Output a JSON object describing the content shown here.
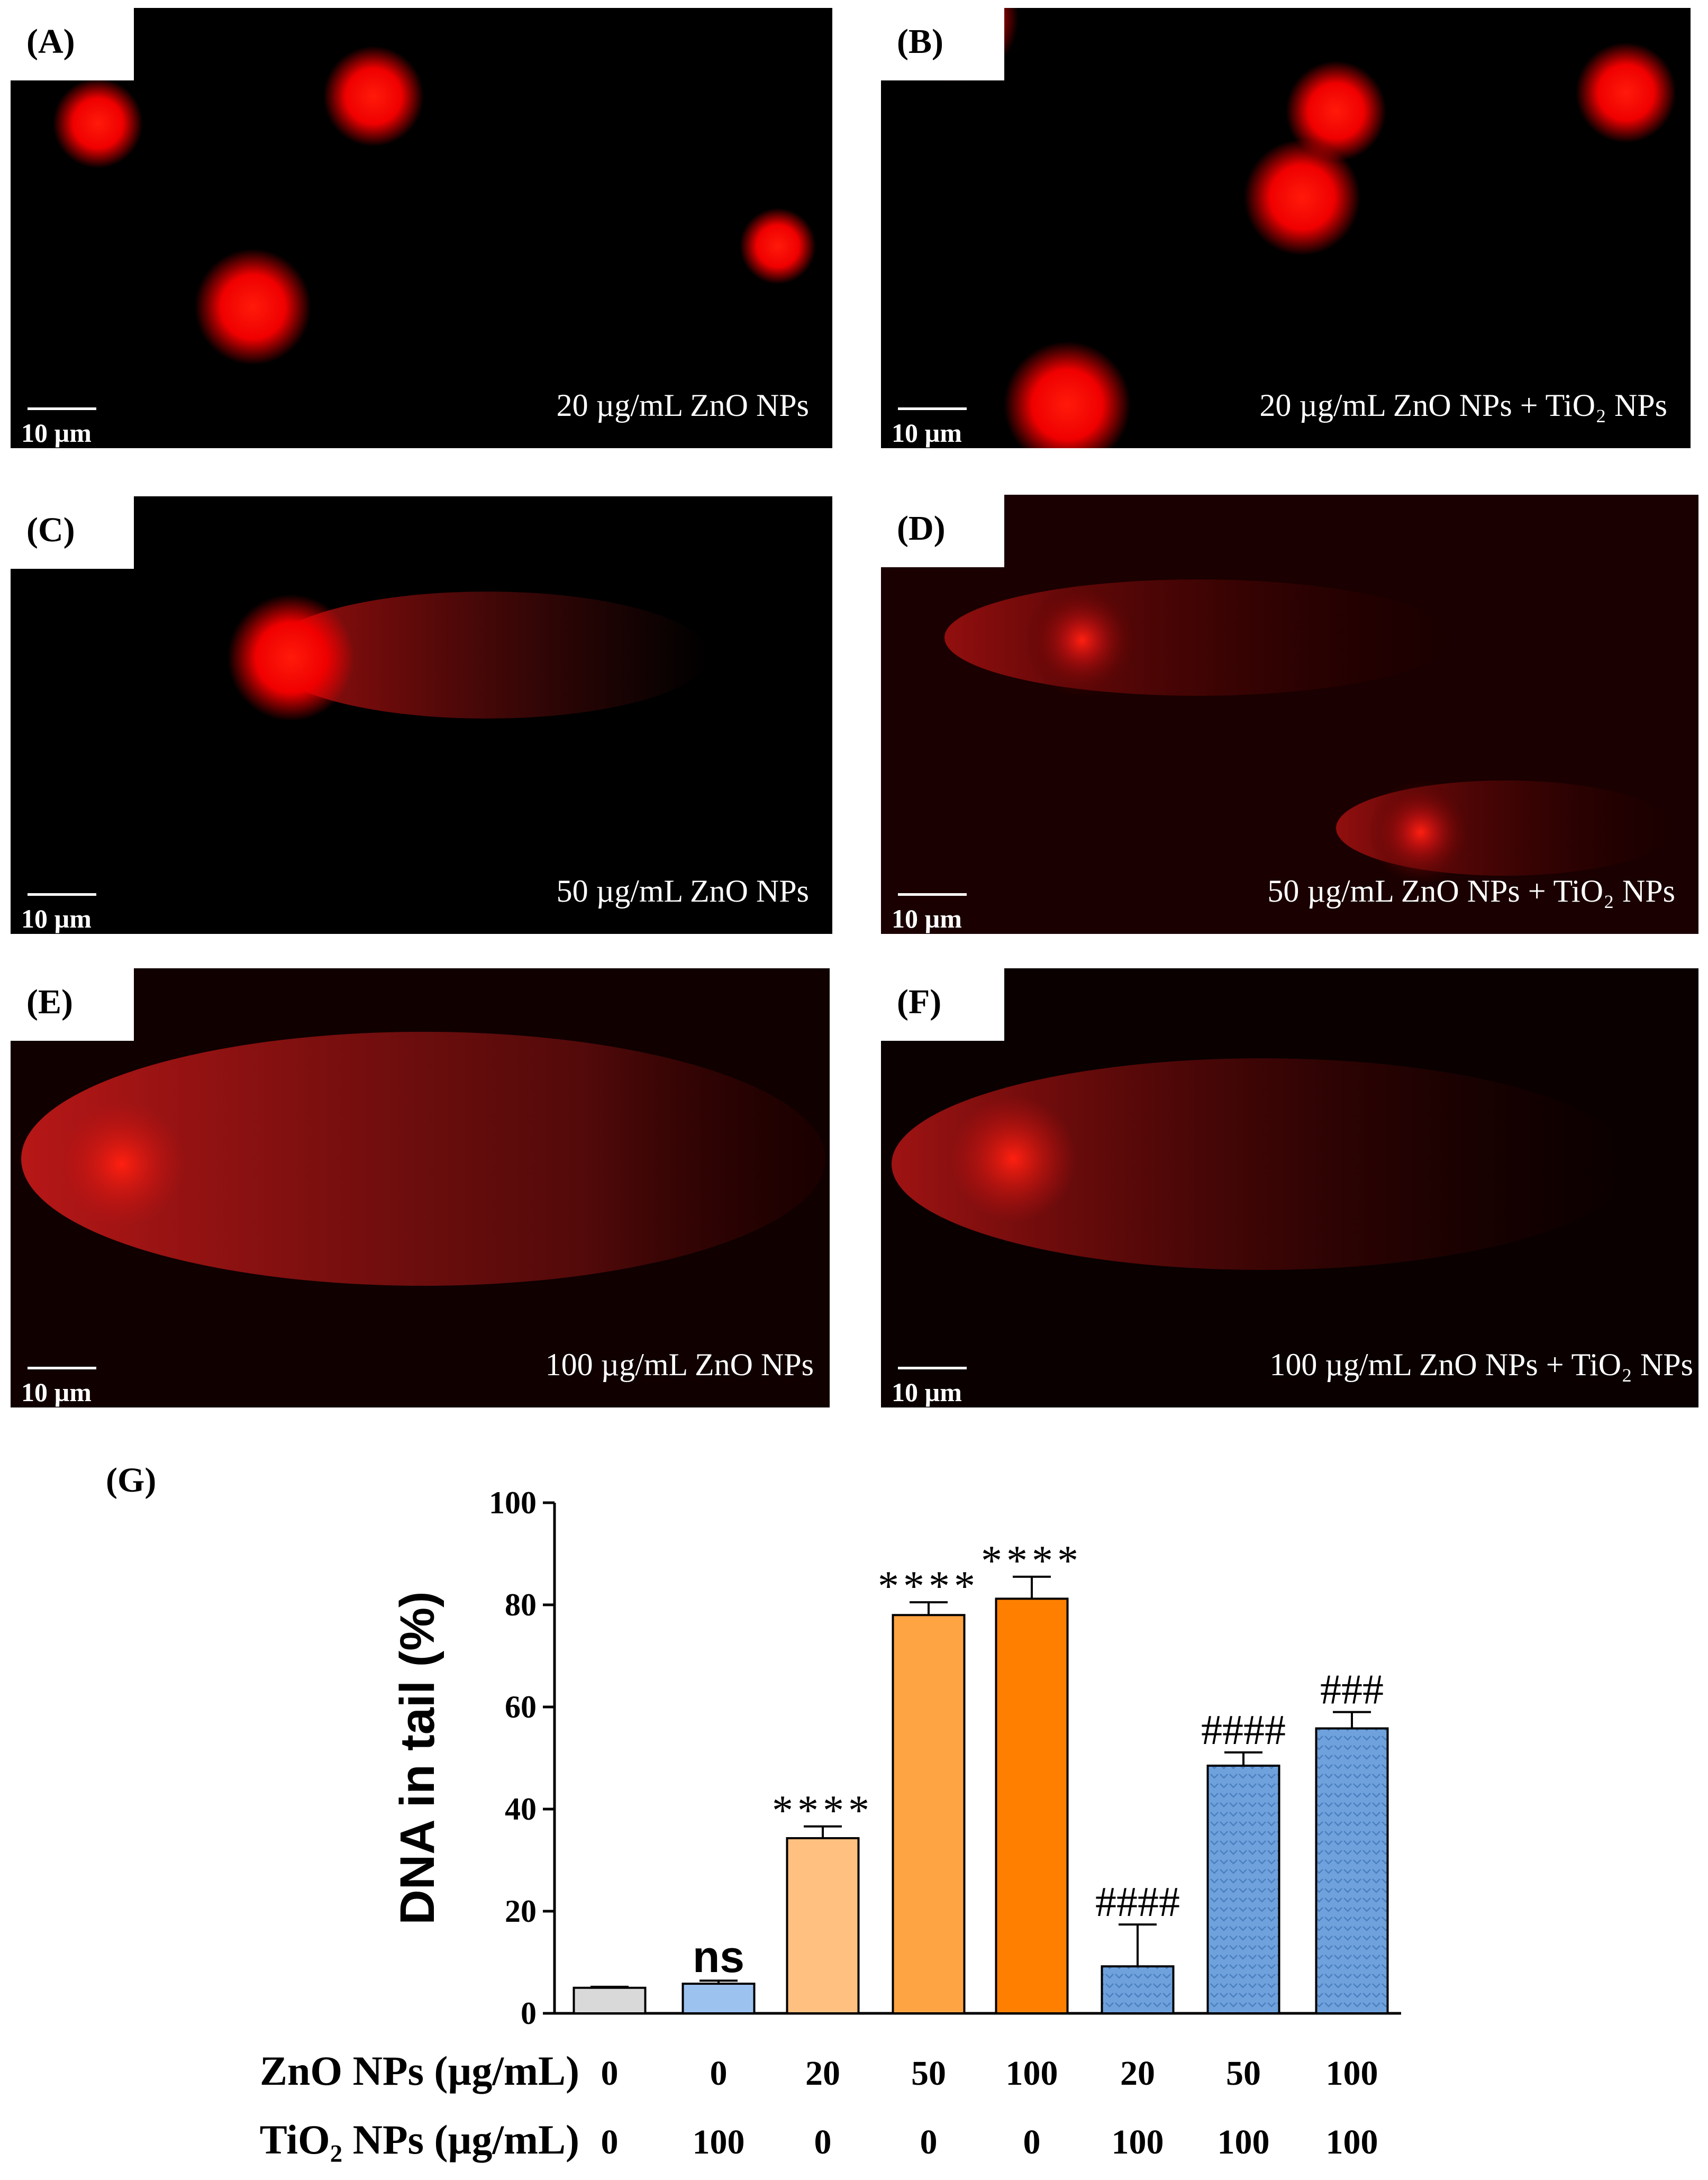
{
  "panels": [
    {
      "label": "(A)",
      "caption": "20 µg/mL ZnO NPs",
      "scale": "10 µm"
    },
    {
      "label": "(B)",
      "caption": "20 µg/mL ZnO NPs + TiO₂ NPs",
      "scale": "10 µm"
    },
    {
      "label": "(C)",
      "caption": "50 µg/mL ZnO NPs",
      "scale": "10 µm"
    },
    {
      "label": "(D)",
      "caption": "50 µg/mL ZnO NPs + TiO₂ NPs",
      "scale": "10 µm"
    },
    {
      "label": "(E)",
      "caption": "100 µg/mL ZnO NPs",
      "scale": "10 µm"
    },
    {
      "label": "(F)",
      "caption": "100 µg/mL ZnO NPs + TiO₂ NPs",
      "scale": "10 µm"
    }
  ],
  "chart_label": "(G)",
  "chart_data": {
    "type": "bar",
    "ylabel": "DNA in tail (%)",
    "ylim": [
      0,
      100
    ],
    "yticks": [
      0,
      20,
      40,
      60,
      80,
      100
    ],
    "row_labels": [
      "ZnO NPs (µg/mL)",
      "TiO₂ NPs (µg/mL)"
    ],
    "zno": [
      "0",
      "0",
      "20",
      "50",
      "100",
      "20",
      "50",
      "100"
    ],
    "tio2": [
      "0",
      "100",
      "0",
      "0",
      "0",
      "100",
      "100",
      "100"
    ],
    "values": [
      5,
      5.8,
      34.3,
      78,
      81.2,
      9.2,
      48.5,
      55.8
    ],
    "errors": [
      0.2,
      0.6,
      2.3,
      2.5,
      4.3,
      8.2,
      2.6,
      3.2
    ],
    "annotations": [
      "",
      "ns",
      "****",
      "****",
      "****",
      "####",
      "####",
      "###"
    ],
    "colors": [
      "#d9d9d9",
      "#9cc2f0",
      "#ffc080",
      "#ffa442",
      "#ff8000",
      "#6fa2dc",
      "#6fa2dc",
      "#6fa2dc"
    ],
    "patterned": [
      false,
      false,
      false,
      false,
      false,
      true,
      true,
      true
    ]
  }
}
